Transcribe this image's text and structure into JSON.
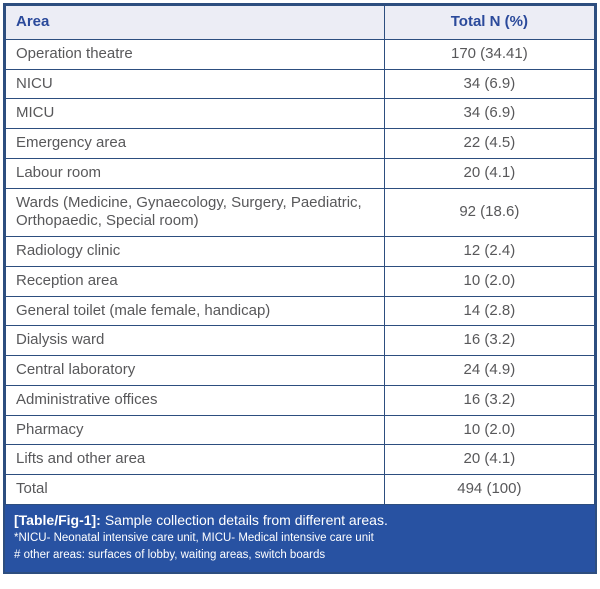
{
  "table": {
    "columns": [
      {
        "label": "Area"
      },
      {
        "label": "Total N (%)"
      }
    ],
    "rows": [
      {
        "area": "Operation theatre",
        "total": "170 (34.41)"
      },
      {
        "area": "NICU",
        "total": "34 (6.9)"
      },
      {
        "area": "MICU",
        "total": "34 (6.9)"
      },
      {
        "area": "Emergency area",
        "total": "22 (4.5)"
      },
      {
        "area": "Labour room",
        "total": "20 (4.1)"
      },
      {
        "area": "Wards (Medicine, Gynaecology, Surgery, Paediatric, Orthopaedic, Special room)",
        "total": "92 (18.6)"
      },
      {
        "area": "Radiology clinic",
        "total": "12 (2.4)"
      },
      {
        "area": "Reception area",
        "total": "10 (2.0)"
      },
      {
        "area": "General toilet (male female, handicap)",
        "total": "14 (2.8)"
      },
      {
        "area": "Dialysis ward",
        "total": "16 (3.2)"
      },
      {
        "area": "Central laboratory",
        "total": "24 (4.9)"
      },
      {
        "area": "Administrative offices",
        "total": "16 (3.2)"
      },
      {
        "area": "Pharmacy",
        "total": "10 (2.0)"
      },
      {
        "area": "Lifts and other area",
        "total": "20 (4.1)"
      },
      {
        "area": "Total",
        "total": "494 (100)"
      }
    ]
  },
  "caption": {
    "label": "[Table/Fig-1]:",
    "title": "Sample collection details from different areas.",
    "footnote1": "*NICU- Neonatal intensive care unit, MICU- Medical intensive care unit",
    "footnote2": "# other areas: surfaces of lobby, waiting areas, switch boards"
  },
  "colors": {
    "border": "#2d4e7f",
    "header_bg": "#ecedf5",
    "header_text": "#2b4a9b",
    "body_text": "#58585a",
    "caption_bg": "#2852a2",
    "caption_text": "#ffffff"
  }
}
